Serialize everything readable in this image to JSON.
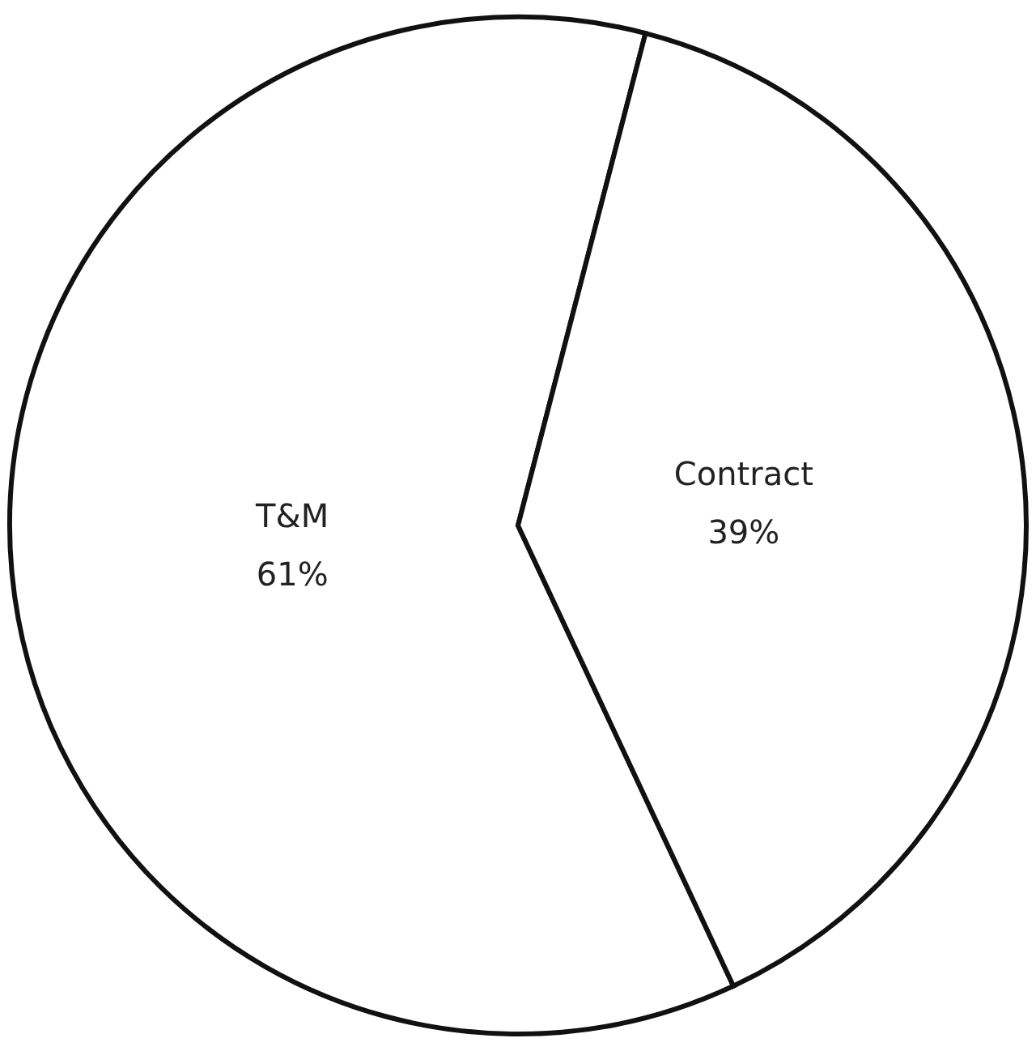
{
  "chart_data": {
    "type": "pie",
    "categories": [
      "T&M",
      "Contract"
    ],
    "values": [
      61,
      39
    ],
    "value_labels": [
      "61%",
      "39%"
    ],
    "colors": [
      "#ffffff",
      "#ffffff"
    ]
  }
}
